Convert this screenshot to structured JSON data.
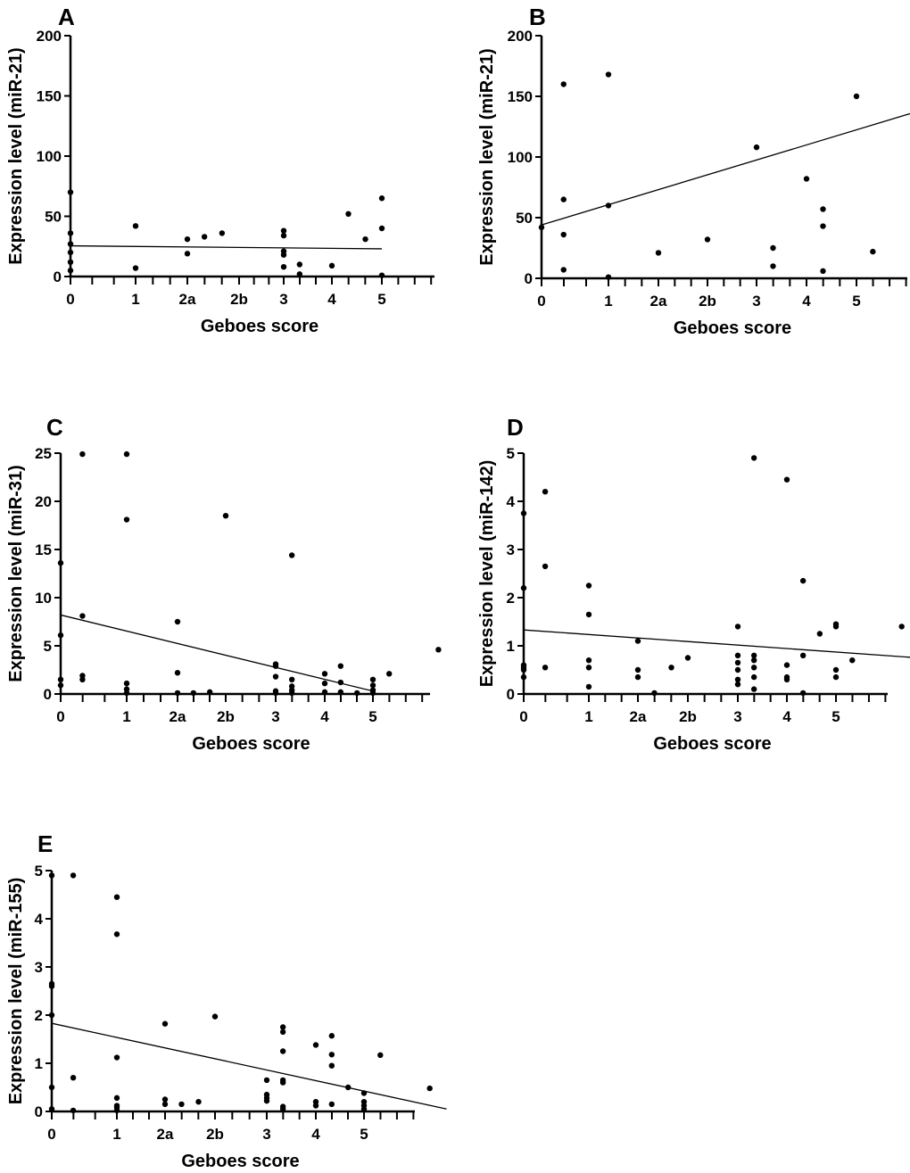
{
  "chart_data": [
    {
      "type": "scatter",
      "panel": "A",
      "xlabel": "Geboes score",
      "ylabel": "Expression level (miR-21)",
      "ylim": [
        0,
        200
      ],
      "yticks": [
        0,
        50,
        100,
        150,
        200
      ],
      "x_tick_labels": [
        {
          "x": 0,
          "label": "0"
        },
        {
          "x": 1,
          "label": "1"
        },
        {
          "x": 2,
          "label": "2a"
        },
        {
          "x": 3,
          "label": "2b"
        },
        {
          "x": 4,
          "label": "3"
        },
        {
          "x": 5,
          "label": "4"
        },
        {
          "x": 6,
          "label": "5"
        }
      ],
      "xlim": [
        0,
        7
      ],
      "points": [
        [
          0,
          70
        ],
        [
          0,
          36
        ],
        [
          0,
          27
        ],
        [
          0,
          20
        ],
        [
          0,
          12
        ],
        [
          0,
          5
        ],
        [
          1,
          42
        ],
        [
          1,
          7
        ],
        [
          2,
          31
        ],
        [
          2,
          19
        ],
        [
          2.33,
          33
        ],
        [
          2.67,
          36
        ],
        [
          4,
          38
        ],
        [
          4,
          34
        ],
        [
          4,
          21
        ],
        [
          4,
          18
        ],
        [
          4,
          8
        ],
        [
          4.33,
          10
        ],
        [
          4.33,
          2
        ],
        [
          5,
          9
        ],
        [
          5.33,
          52
        ],
        [
          5.67,
          31
        ],
        [
          6,
          65
        ],
        [
          6,
          40
        ],
        [
          6,
          1
        ]
      ],
      "fit": [
        [
          0,
          25.5
        ],
        [
          6,
          23
        ]
      ]
    },
    {
      "type": "scatter",
      "panel": "B",
      "xlabel": "Geboes score",
      "ylabel": "Expression level (miR-21)",
      "ylim": [
        0,
        200
      ],
      "yticks": [
        0,
        50,
        100,
        150,
        200
      ],
      "x_tick_labels": [
        {
          "x": 0,
          "label": "0"
        },
        {
          "x": 1,
          "label": "1"
        },
        {
          "x": 2,
          "label": "2a"
        },
        {
          "x": 3,
          "label": "2b"
        },
        {
          "x": 4,
          "label": "3"
        },
        {
          "x": 5,
          "label": "4"
        },
        {
          "x": 6,
          "label": "5"
        }
      ],
      "xlim": [
        0,
        7.67
      ],
      "points": [
        [
          0,
          42
        ],
        [
          0.33,
          160
        ],
        [
          0.33,
          65
        ],
        [
          0.33,
          36
        ],
        [
          0.33,
          7
        ],
        [
          1,
          168
        ],
        [
          1,
          60
        ],
        [
          1,
          1
        ],
        [
          2,
          21
        ],
        [
          3,
          32
        ],
        [
          4,
          108
        ],
        [
          4.33,
          25
        ],
        [
          4.33,
          10
        ],
        [
          5,
          82
        ],
        [
          5.33,
          57
        ],
        [
          5.33,
          43
        ],
        [
          5.33,
          6
        ],
        [
          6,
          150
        ],
        [
          6.33,
          22
        ]
      ],
      "fit": [
        [
          0,
          44
        ],
        [
          7.67,
          143
        ]
      ]
    },
    {
      "type": "scatter",
      "panel": "C",
      "xlabel": "Geboes score",
      "ylabel": "Expression level (miR-31)",
      "ylim": [
        0,
        25
      ],
      "yticks": [
        0,
        5,
        10,
        15,
        20,
        25
      ],
      "x_tick_labels": [
        {
          "x": 0,
          "label": "0"
        },
        {
          "x": 1,
          "label": "1"
        },
        {
          "x": 2,
          "label": "2a"
        },
        {
          "x": 3,
          "label": "2b"
        },
        {
          "x": 4,
          "label": "3"
        },
        {
          "x": 5,
          "label": "4"
        },
        {
          "x": 6,
          "label": "5"
        }
      ],
      "xlim": [
        0,
        7.67
      ],
      "points": [
        [
          0,
          13.6
        ],
        [
          0,
          6.1
        ],
        [
          0,
          1.5
        ],
        [
          0,
          0.9
        ],
        [
          0.33,
          24.9
        ],
        [
          0.33,
          8.1
        ],
        [
          0.33,
          1.9
        ],
        [
          0.33,
          1.5
        ],
        [
          1,
          24.9
        ],
        [
          1,
          18.1
        ],
        [
          1,
          1.1
        ],
        [
          1,
          0.5
        ],
        [
          1,
          0.1
        ],
        [
          2,
          7.5
        ],
        [
          2,
          2.2
        ],
        [
          2,
          0.1
        ],
        [
          2.33,
          0.1
        ],
        [
          2.67,
          0.2
        ],
        [
          3,
          18.5
        ],
        [
          4,
          3.1
        ],
        [
          4,
          2.9
        ],
        [
          4,
          1.8
        ],
        [
          4,
          0.3
        ],
        [
          4,
          0.1
        ],
        [
          4.33,
          14.4
        ],
        [
          4.33,
          1.5
        ],
        [
          4.33,
          0.8
        ],
        [
          4.33,
          0.4
        ],
        [
          4.33,
          0.1
        ],
        [
          5,
          2.1
        ],
        [
          5,
          1.1
        ],
        [
          5,
          0.2
        ],
        [
          5.33,
          2.9
        ],
        [
          5.33,
          1.2
        ],
        [
          5.33,
          0.2
        ],
        [
          5.67,
          0.1
        ],
        [
          6,
          1.5
        ],
        [
          6,
          0.9
        ],
        [
          6,
          0.4
        ],
        [
          6,
          0.1
        ],
        [
          6.33,
          2.1
        ],
        [
          7.33,
          4.6
        ]
      ],
      "fit": [
        [
          0,
          8.2
        ],
        [
          6,
          0.3
        ]
      ]
    },
    {
      "type": "scatter",
      "panel": "D",
      "xlabel": "Geboes score",
      "ylabel": "Expression level (miR-142)",
      "ylim": [
        0,
        5
      ],
      "yticks": [
        0,
        1,
        2,
        3,
        4,
        5
      ],
      "x_tick_labels": [
        {
          "x": 0,
          "label": "0"
        },
        {
          "x": 1,
          "label": "1"
        },
        {
          "x": 2,
          "label": "2a"
        },
        {
          "x": 3,
          "label": "2b"
        },
        {
          "x": 4,
          "label": "3"
        },
        {
          "x": 5,
          "label": "4"
        },
        {
          "x": 6,
          "label": "5"
        }
      ],
      "xlim": [
        0,
        7.67
      ],
      "points": [
        [
          0,
          3.75
        ],
        [
          0,
          2.2
        ],
        [
          0,
          0.6
        ],
        [
          0,
          0.55
        ],
        [
          0,
          0.5
        ],
        [
          0,
          0.35
        ],
        [
          0.33,
          4.2
        ],
        [
          0.33,
          2.65
        ],
        [
          0.33,
          0.55
        ],
        [
          1,
          2.25
        ],
        [
          1,
          1.65
        ],
        [
          1,
          0.7
        ],
        [
          1,
          0.55
        ],
        [
          1,
          0.15
        ],
        [
          2,
          1.1
        ],
        [
          2,
          0.5
        ],
        [
          2,
          0.35
        ],
        [
          2.33,
          0.02
        ],
        [
          2.67,
          0.55
        ],
        [
          3,
          0.75
        ],
        [
          4,
          1.4
        ],
        [
          4,
          0.8
        ],
        [
          4,
          0.65
        ],
        [
          4,
          0.5
        ],
        [
          4,
          0.3
        ],
        [
          4,
          0.2
        ],
        [
          4.33,
          4.9
        ],
        [
          4.33,
          0.8
        ],
        [
          4.33,
          0.7
        ],
        [
          4.33,
          0.55
        ],
        [
          4.33,
          0.35
        ],
        [
          4.33,
          0.1
        ],
        [
          5,
          4.45
        ],
        [
          5,
          0.6
        ],
        [
          5,
          0.35
        ],
        [
          5,
          0.3
        ],
        [
          5.33,
          2.35
        ],
        [
          5.33,
          0.8
        ],
        [
          5.33,
          0.02
        ],
        [
          5.67,
          1.25
        ],
        [
          6,
          1.45
        ],
        [
          6,
          1.4
        ],
        [
          6,
          0.5
        ],
        [
          6,
          0.35
        ],
        [
          6.33,
          0.7
        ],
        [
          7.33,
          1.4
        ]
      ],
      "fit": [
        [
          0,
          1.33
        ],
        [
          7.67,
          0.75
        ]
      ]
    },
    {
      "type": "scatter",
      "panel": "E",
      "xlabel": "Geboes score",
      "ylabel": "Expression level (miR-155)",
      "ylim": [
        0,
        5
      ],
      "yticks": [
        0,
        1,
        2,
        3,
        4,
        5
      ],
      "x_tick_labels": [
        {
          "x": 0,
          "label": "0"
        },
        {
          "x": 1,
          "label": "1"
        },
        {
          "x": 2,
          "label": "2a"
        },
        {
          "x": 3,
          "label": "2b"
        },
        {
          "x": 4,
          "label": "3"
        },
        {
          "x": 5,
          "label": "4"
        },
        {
          "x": 6,
          "label": "5"
        }
      ],
      "xlim": [
        0,
        7.67
      ],
      "points": [
        [
          0,
          4.9
        ],
        [
          0,
          2.65
        ],
        [
          0,
          2.6
        ],
        [
          0,
          2.0
        ],
        [
          0,
          0.5
        ],
        [
          0,
          0.05
        ],
        [
          0.33,
          4.9
        ],
        [
          0.33,
          0.7
        ],
        [
          0.33,
          0.02
        ],
        [
          1,
          4.45
        ],
        [
          1,
          3.68
        ],
        [
          1,
          1.12
        ],
        [
          1,
          0.28
        ],
        [
          1,
          0.12
        ],
        [
          1,
          0.08
        ],
        [
          1,
          0.02
        ],
        [
          2,
          1.82
        ],
        [
          2,
          0.25
        ],
        [
          2,
          0.15
        ],
        [
          2.33,
          0.15
        ],
        [
          2.67,
          0.2
        ],
        [
          3,
          1.97
        ],
        [
          4,
          0.65
        ],
        [
          4,
          0.35
        ],
        [
          4,
          0.28
        ],
        [
          4,
          0.22
        ],
        [
          4.33,
          1.75
        ],
        [
          4.33,
          1.65
        ],
        [
          4.33,
          1.25
        ],
        [
          4.33,
          0.65
        ],
        [
          4.33,
          0.6
        ],
        [
          4.33,
          0.1
        ],
        [
          4.33,
          0.05
        ],
        [
          5,
          1.38
        ],
        [
          5,
          0.2
        ],
        [
          5,
          0.12
        ],
        [
          5.33,
          1.57
        ],
        [
          5.33,
          1.18
        ],
        [
          5.33,
          0.95
        ],
        [
          5.33,
          0.15
        ],
        [
          5.67,
          0.5
        ],
        [
          6,
          0.38
        ],
        [
          6,
          0.2
        ],
        [
          6,
          0.12
        ],
        [
          6,
          0.05
        ],
        [
          6.33,
          1.17
        ],
        [
          7.33,
          0.48
        ]
      ],
      "fit": [
        [
          0,
          1.83
        ],
        [
          7.67,
          0.05
        ]
      ]
    }
  ]
}
